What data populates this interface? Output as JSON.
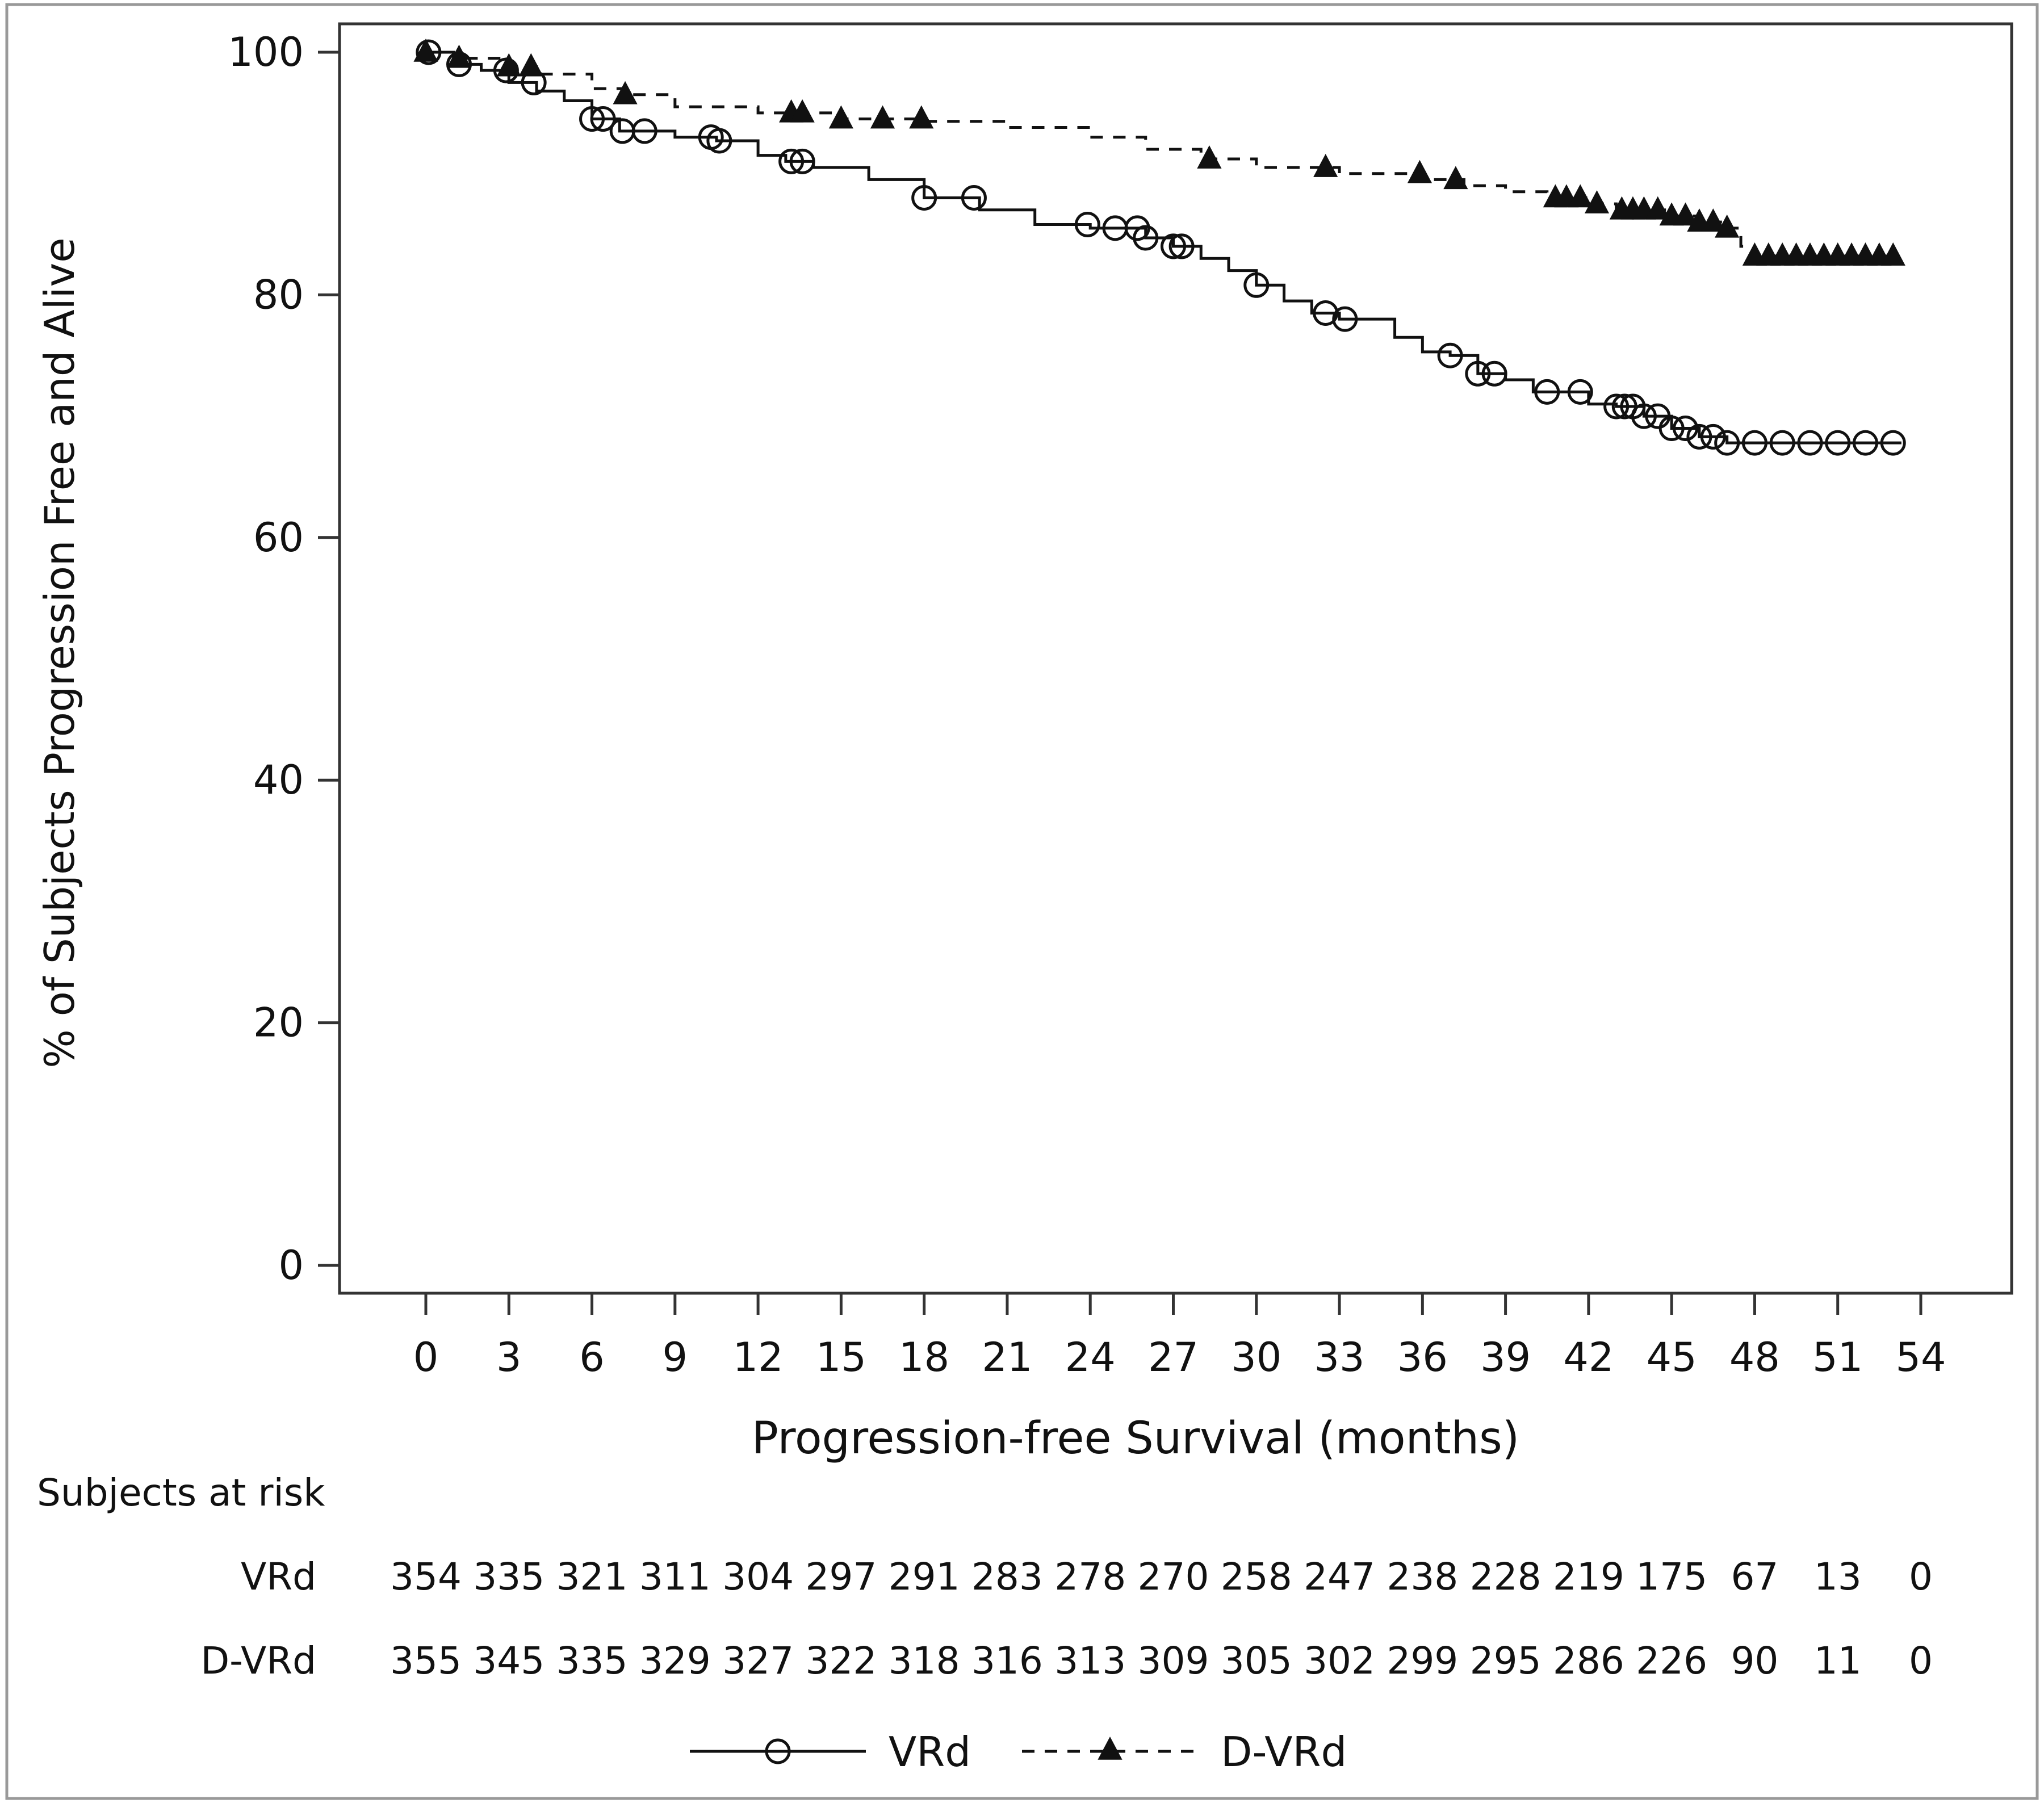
{
  "chart_data": {
    "type": "line",
    "subtype": "kaplan-meier",
    "xlabel": "Progression-free Survival (months)",
    "ylabel": "% of Subjects Progression Free and Alive",
    "xlim": [
      0,
      54
    ],
    "ylim": [
      0,
      100
    ],
    "xticks": [
      0,
      3,
      6,
      9,
      12,
      15,
      18,
      21,
      24,
      27,
      30,
      33,
      36,
      39,
      42,
      45,
      48,
      51,
      54
    ],
    "yticks": [
      0,
      20,
      40,
      60,
      80,
      100
    ],
    "grid": false,
    "legend_position": "bottom",
    "series": [
      {
        "name": "VRd",
        "line_style": "solid",
        "marker": "open-circle",
        "color": "#111111",
        "x": [
          0,
          1,
          2,
          3,
          4,
          5,
          6,
          7,
          9,
          10.5,
          12,
          13,
          14,
          16,
          18,
          20,
          22,
          24,
          26,
          27,
          28,
          29,
          30,
          31,
          32,
          33,
          35,
          36,
          37,
          38,
          39,
          40,
          42,
          43,
          44,
          45,
          46,
          47,
          53.3
        ],
        "y": [
          100,
          99,
          98.5,
          97.5,
          96.8,
          96,
          94.5,
          93.5,
          93,
          92.7,
          91.5,
          91,
          90.5,
          89.5,
          88,
          87,
          85.8,
          85.5,
          84.7,
          84,
          83,
          82,
          80.8,
          79.5,
          78.5,
          78,
          76.5,
          75.3,
          75,
          73.5,
          73,
          72,
          71,
          70.8,
          70,
          69,
          68.3,
          67.8,
          67.8
        ],
        "censored_x": [
          0.1,
          1.2,
          2.9,
          3.9,
          6,
          6.4,
          7.1,
          7.9,
          10.3,
          10.6,
          13.2,
          13.6,
          18,
          19.8,
          23.9,
          24.9,
          25.7,
          26,
          27,
          27.3,
          30,
          32.5,
          33.2,
          37,
          38,
          38.6,
          40.5,
          41.7,
          43,
          43.3,
          43.6,
          44,
          44.5,
          45,
          45.5,
          46,
          46.5,
          47,
          48,
          49,
          50,
          51,
          52,
          53
        ]
      },
      {
        "name": "D-VRd",
        "line_style": "dashed",
        "marker": "filled-triangle",
        "color": "#111111",
        "x": [
          0,
          1,
          3,
          4,
          6,
          7.2,
          9,
          12,
          13.5,
          15,
          18,
          21,
          24,
          26,
          28,
          30,
          33,
          36,
          37.5,
          39,
          40.5,
          42,
          43,
          45,
          46,
          47,
          47.5,
          48,
          53.3
        ],
        "y": [
          100,
          99.5,
          98.8,
          98.2,
          97,
          96.5,
          95.5,
          95,
          95,
          94.5,
          94.3,
          93.8,
          93,
          92,
          91.2,
          90.5,
          90,
          89.5,
          89,
          88.5,
          88,
          87.5,
          87,
          86.5,
          86,
          85.5,
          84,
          83.2,
          83.2
        ],
        "censored_x": [
          0,
          1.2,
          3,
          3.8,
          7.2,
          13.2,
          13.6,
          15,
          16.5,
          17.9,
          28.3,
          32.5,
          35.9,
          37.2,
          40.8,
          41.2,
          41.7,
          42.3,
          43.2,
          43.6,
          44,
          44.5,
          45,
          45.5,
          46,
          46.5,
          47,
          48,
          48.5,
          49,
          49.5,
          50,
          50.5,
          51,
          51.5,
          52,
          52.5,
          53
        ]
      }
    ],
    "at_risk": {
      "title": "Subjects at risk",
      "rows": [
        {
          "label": "VRd",
          "values": [
            "354",
            "335",
            "321",
            "311",
            "304",
            "297",
            "291",
            "283",
            "278",
            "270",
            "258",
            "247",
            "238",
            "228",
            "219",
            "175",
            "67",
            "13",
            "0"
          ]
        },
        {
          "label": "D-VRd",
          "values": [
            "355",
            "345",
            "335",
            "329",
            "327",
            "322",
            "318",
            "316",
            "313",
            "309",
            "305",
            "302",
            "299",
            "295",
            "286",
            "226",
            "90",
            "11",
            "0"
          ]
        }
      ]
    }
  }
}
